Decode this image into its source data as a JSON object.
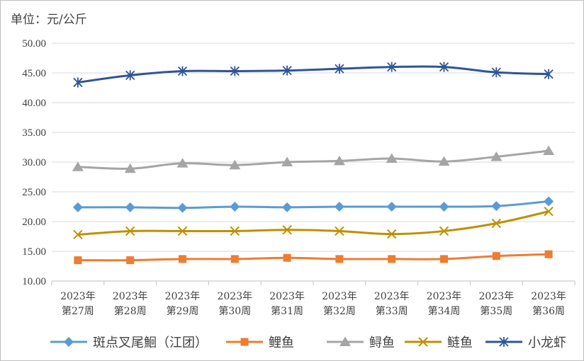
{
  "chart_data": {
    "type": "line",
    "unit_label": "单位：元/公斤",
    "categories": [
      [
        "2023年",
        "第27周"
      ],
      [
        "2023年",
        "第28周"
      ],
      [
        "2023年",
        "第29周"
      ],
      [
        "2023年",
        "第30周"
      ],
      [
        "2023年",
        "第31周"
      ],
      [
        "2023年",
        "第32周"
      ],
      [
        "2023年",
        "第33周"
      ],
      [
        "2023年",
        "第34周"
      ],
      [
        "2023年",
        "第35周"
      ],
      [
        "2023年",
        "第36周"
      ]
    ],
    "ylim": [
      10,
      50
    ],
    "yticks": [
      "10.00",
      "15.00",
      "20.00",
      "25.00",
      "30.00",
      "35.00",
      "40.00",
      "45.00",
      "50.00"
    ],
    "grid": true,
    "legend_position": "bottom",
    "series": [
      {
        "name": "斑点叉尾鮰（江团）",
        "color": "#5b9bd5",
        "marker": "diamond",
        "values": [
          22.4,
          22.4,
          22.3,
          22.5,
          22.4,
          22.5,
          22.5,
          22.5,
          22.6,
          23.4
        ]
      },
      {
        "name": "鲤鱼",
        "color": "#ed7d31",
        "marker": "square",
        "values": [
          13.5,
          13.5,
          13.7,
          13.7,
          13.9,
          13.7,
          13.7,
          13.7,
          14.2,
          14.5
        ]
      },
      {
        "name": "鲟鱼",
        "color": "#a5a5a5",
        "marker": "triangle",
        "values": [
          29.2,
          28.9,
          29.8,
          29.5,
          30.0,
          30.2,
          30.6,
          30.1,
          30.9,
          31.9
        ]
      },
      {
        "name": "鲢鱼",
        "color": "#bf9000",
        "marker": "x",
        "values": [
          17.8,
          18.4,
          18.4,
          18.4,
          18.6,
          18.4,
          17.9,
          18.4,
          19.7,
          21.7
        ]
      },
      {
        "name": "小龙虾",
        "color": "#2f5597",
        "marker": "star",
        "values": [
          43.4,
          44.6,
          45.3,
          45.3,
          45.4,
          45.7,
          46.0,
          46.0,
          45.1,
          44.8
        ]
      }
    ]
  }
}
